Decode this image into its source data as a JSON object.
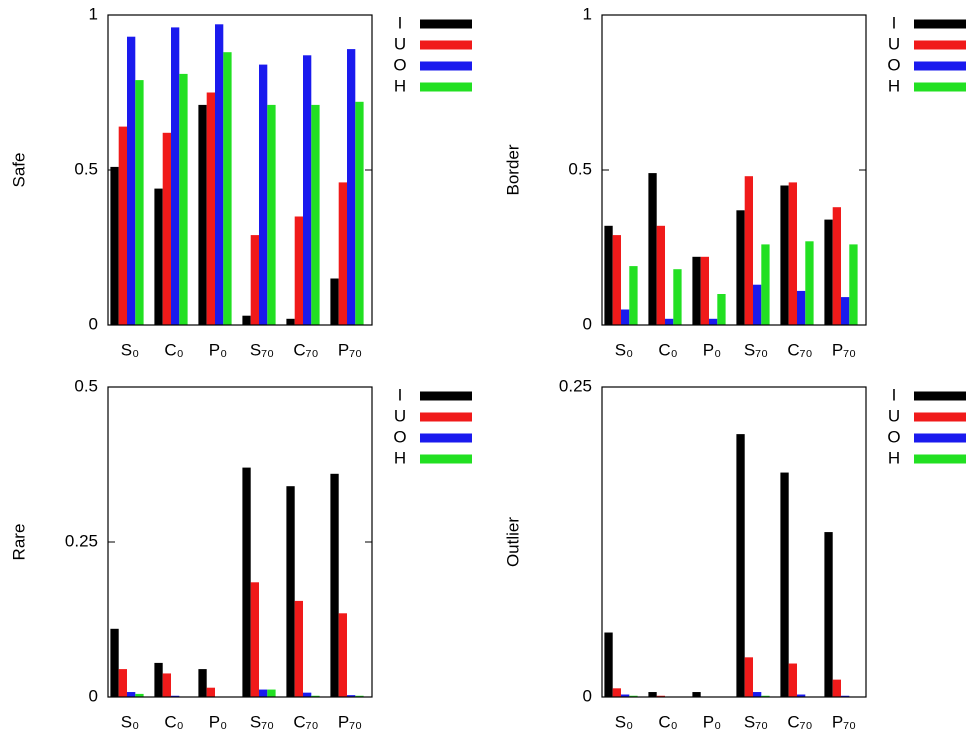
{
  "chart_data": [
    {
      "type": "bar",
      "ylabel": "Safe",
      "categories": [
        "S₀",
        "C₀",
        "P₀",
        "S₇₀",
        "C₇₀",
        "P₇₀"
      ],
      "series": [
        {
          "name": "I",
          "color": "#000000",
          "values": [
            0.51,
            0.44,
            0.71,
            0.03,
            0.02,
            0.15
          ]
        },
        {
          "name": "U",
          "color": "#f01a1a",
          "values": [
            0.64,
            0.62,
            0.75,
            0.29,
            0.35,
            0.46
          ]
        },
        {
          "name": "O",
          "color": "#1a1aee",
          "values": [
            0.93,
            0.96,
            0.97,
            0.84,
            0.87,
            0.89
          ]
        },
        {
          "name": "H",
          "color": "#22e022",
          "values": [
            0.79,
            0.81,
            0.88,
            0.71,
            0.71,
            0.72
          ]
        }
      ],
      "ylim": [
        0,
        1
      ],
      "yticks": [
        0,
        0.5,
        1
      ]
    },
    {
      "type": "bar",
      "ylabel": "Border",
      "categories": [
        "S₀",
        "C₀",
        "P₀",
        "S₇₀",
        "C₇₀",
        "P₇₀"
      ],
      "series": [
        {
          "name": "I",
          "color": "#000000",
          "values": [
            0.32,
            0.49,
            0.22,
            0.37,
            0.45,
            0.34
          ]
        },
        {
          "name": "U",
          "color": "#f01a1a",
          "values": [
            0.29,
            0.32,
            0.22,
            0.48,
            0.46,
            0.38
          ]
        },
        {
          "name": "O",
          "color": "#1a1aee",
          "values": [
            0.05,
            0.02,
            0.02,
            0.13,
            0.11,
            0.09
          ]
        },
        {
          "name": "H",
          "color": "#22e022",
          "values": [
            0.19,
            0.18,
            0.1,
            0.26,
            0.27,
            0.26
          ]
        }
      ],
      "ylim": [
        0,
        1
      ],
      "yticks": [
        0,
        0.5,
        1
      ]
    },
    {
      "type": "bar",
      "ylabel": "Rare",
      "categories": [
        "S₀",
        "C₀",
        "P₀",
        "S₇₀",
        "C₇₀",
        "P₇₀"
      ],
      "series": [
        {
          "name": "I",
          "color": "#000000",
          "values": [
            0.11,
            0.055,
            0.045,
            0.37,
            0.34,
            0.36
          ]
        },
        {
          "name": "U",
          "color": "#f01a1a",
          "values": [
            0.045,
            0.038,
            0.015,
            0.185,
            0.155,
            0.135
          ]
        },
        {
          "name": "O",
          "color": "#1a1aee",
          "values": [
            0.008,
            0.002,
            0,
            0.012,
            0.007,
            0.003
          ]
        },
        {
          "name": "H",
          "color": "#22e022",
          "values": [
            0.005,
            0,
            0,
            0.012,
            0.002,
            0.002
          ]
        }
      ],
      "ylim": [
        0,
        0.5
      ],
      "yticks": [
        0,
        0.25,
        0.5
      ]
    },
    {
      "type": "bar",
      "ylabel": "Outlier",
      "categories": [
        "S₀",
        "C₀",
        "P₀",
        "S₇₀",
        "C₇₀",
        "P₇₀"
      ],
      "series": [
        {
          "name": "I",
          "color": "#000000",
          "values": [
            0.052,
            0.004,
            0.004,
            0.212,
            0.181,
            0.133
          ]
        },
        {
          "name": "U",
          "color": "#f01a1a",
          "values": [
            0.007,
            0.001,
            0,
            0.032,
            0.027,
            0.014
          ]
        },
        {
          "name": "O",
          "color": "#1a1aee",
          "values": [
            0.002,
            0,
            0,
            0.004,
            0.002,
            0.001
          ]
        },
        {
          "name": "H",
          "color": "#22e022",
          "values": [
            0.001,
            0,
            0,
            0.001,
            0,
            0
          ]
        }
      ],
      "ylim": [
        0,
        0.25
      ],
      "yticks": [
        0,
        0.25
      ]
    }
  ]
}
